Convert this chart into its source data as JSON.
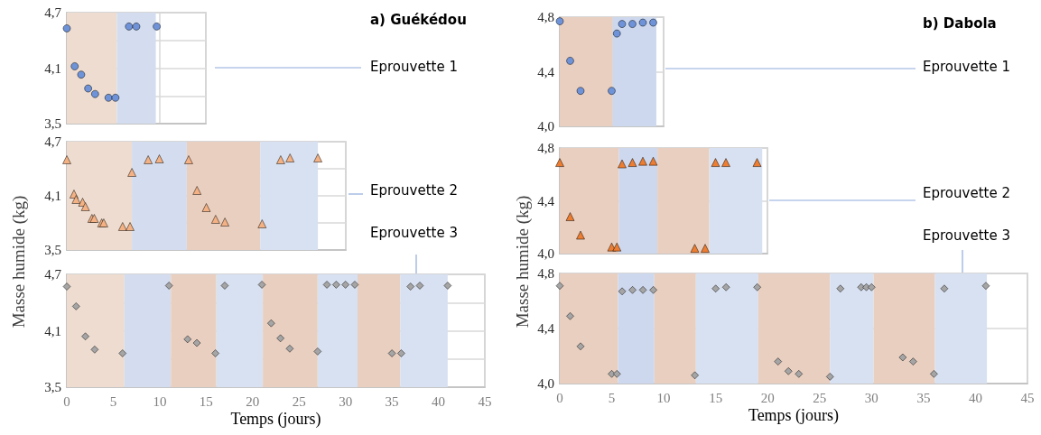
{
  "chart_data": [
    {
      "type": "scatter",
      "annotations": [
        "a) Guékédou",
        "Eprouvette 1"
      ],
      "marker": "circle",
      "grid": true,
      "tick_labels": "y",
      "xlim": [
        0,
        15
      ],
      "xticks": [
        0,
        5,
        10,
        15
      ],
      "ylim": [
        3.5,
        4.7
      ],
      "yticks": [
        {
          "value": 3.5,
          "label": "3,5"
        },
        {
          "value": 3.8,
          "label": null
        },
        {
          "value": 4.1,
          "label": "4,1"
        },
        {
          "value": 4.4,
          "label": null
        },
        {
          "value": 4.7,
          "label": "4,7"
        }
      ],
      "bands": [
        {
          "axis": "x",
          "from": 0,
          "to": 5.4,
          "color": "#eddccf"
        },
        {
          "axis": "x",
          "from": 5.4,
          "to": 9.6,
          "color": "#d3ddef"
        }
      ],
      "series": [
        {
          "color": "#6f93d8",
          "x": [
            0,
            0.85,
            1.55,
            2.3,
            3.05,
            4.5,
            5.25,
            6.7,
            7.5,
            9.7
          ],
          "values": [
            4.53,
            4.12,
            4.03,
            3.88,
            3.82,
            3.78,
            3.78,
            4.55,
            4.55,
            4.55
          ]
        }
      ]
    },
    {
      "type": "scatter",
      "annotations": [
        "Eprouvette 2"
      ],
      "ylabel": "Masse humide (kg)",
      "marker": "triangle",
      "grid": true,
      "tick_labels": "y",
      "xlim": [
        0,
        30
      ],
      "xticks": [
        0,
        5,
        10,
        15,
        20,
        25,
        30
      ],
      "ylim": [
        3.5,
        4.7
      ],
      "yticks": [
        {
          "value": 3.5,
          "label": "3,5"
        },
        {
          "value": 3.8,
          "label": null
        },
        {
          "value": 4.1,
          "label": "4,1"
        },
        {
          "value": 4.4,
          "label": null
        },
        {
          "value": 4.7,
          "label": "4,7"
        }
      ],
      "bands": [
        {
          "axis": "x",
          "from": 0,
          "to": 7,
          "color": "#eddccf"
        },
        {
          "axis": "x",
          "from": 7,
          "to": 12.9,
          "color": "#d3ddef"
        },
        {
          "axis": "x",
          "from": 12.9,
          "to": 20.8,
          "color": "#e9cfc0"
        },
        {
          "axis": "x",
          "from": 20.8,
          "to": 27,
          "color": "#d8e1f1"
        }
      ],
      "series": [
        {
          "color": "#f4b183",
          "x": [
            0,
            0.77,
            1,
            1.7,
            2,
            2.7,
            2.95,
            3.75,
            3.97,
            6,
            6.8,
            7,
            8.75,
            9.95,
            13.1,
            14,
            15,
            16,
            17,
            21,
            23,
            24,
            27
          ],
          "values": [
            4.5,
            4.12,
            4.06,
            4.03,
            3.98,
            3.85,
            3.85,
            3.8,
            3.8,
            3.76,
            3.76,
            4.36,
            4.5,
            4.51,
            4.5,
            4.16,
            3.97,
            3.84,
            3.81,
            3.79,
            4.5,
            4.52,
            4.52
          ]
        }
      ]
    },
    {
      "type": "scatter",
      "annotations": [
        "Eprouvette 3"
      ],
      "xlabel": "Temps (jours)",
      "marker": "diamond",
      "grid": true,
      "xlim": [
        0,
        45
      ],
      "xticks": [
        0,
        5,
        10,
        15,
        20,
        25,
        30,
        35,
        40,
        45
      ],
      "ylim": [
        3.5,
        4.7
      ],
      "yticks": [
        {
          "value": 3.5,
          "label": "3,5"
        },
        {
          "value": 3.8,
          "label": null
        },
        {
          "value": 4.1,
          "label": "4,1"
        },
        {
          "value": 4.4,
          "label": null
        },
        {
          "value": 4.7,
          "label": "4,7"
        }
      ],
      "bands": [
        {
          "axis": "x",
          "from": 0,
          "to": 6.2,
          "color": "#eddccf"
        },
        {
          "axis": "x",
          "from": 6.2,
          "to": 11.2,
          "color": "#d3ddef"
        },
        {
          "axis": "x",
          "from": 11.2,
          "to": 16.1,
          "color": "#e9cfc0"
        },
        {
          "axis": "x",
          "from": 16.1,
          "to": 21.1,
          "color": "#d8e1f1"
        },
        {
          "axis": "x",
          "from": 21.1,
          "to": 27,
          "color": "#e9cfc0"
        },
        {
          "axis": "x",
          "from": 27,
          "to": 31.3,
          "color": "#d8e1f1"
        },
        {
          "axis": "x",
          "from": 31.3,
          "to": 35.9,
          "color": "#e9cfc0"
        },
        {
          "axis": "x",
          "from": 35.9,
          "to": 41,
          "color": "#d8e1f1"
        }
      ],
      "series": [
        {
          "color": "#a5a5a5",
          "x": [
            0,
            1,
            2,
            3,
            6,
            11,
            13,
            14,
            16,
            17,
            21,
            22,
            23,
            24,
            27,
            28,
            29,
            30,
            31,
            35,
            36,
            37,
            38,
            41
          ],
          "values": [
            4.57,
            4.36,
            4.04,
            3.9,
            3.86,
            4.58,
            4.01,
            3.97,
            3.86,
            4.58,
            4.59,
            4.18,
            4.02,
            3.91,
            3.88,
            4.59,
            4.59,
            4.59,
            4.59,
            3.86,
            3.86,
            4.57,
            4.58,
            4.58
          ]
        }
      ]
    },
    {
      "type": "scatter",
      "annotations": [
        "b) Dabola",
        "Eprouvette 1"
      ],
      "marker": "circle",
      "grid": true,
      "tick_labels": "y",
      "xlim": [
        0,
        10
      ],
      "xticks": [
        0,
        5,
        10
      ],
      "ylim": [
        4.0,
        4.8
      ],
      "yticks": [
        {
          "value": 4.0,
          "label": "4,0"
        },
        {
          "value": 4.4,
          "label": "4,4"
        },
        {
          "value": 4.8,
          "label": "4,8"
        }
      ],
      "bands": [
        {
          "axis": "x",
          "from": 0,
          "to": 5.1,
          "color": "#e9cfc0"
        },
        {
          "axis": "x",
          "from": 5.1,
          "to": 9.3,
          "color": "#cdd8ee"
        }
      ],
      "series": [
        {
          "color": "#6f93d8",
          "x": [
            0,
            1,
            2,
            5,
            5.5,
            6,
            7,
            8,
            9
          ],
          "values": [
            4.77,
            4.48,
            4.26,
            4.26,
            4.68,
            4.75,
            4.75,
            4.76,
            4.76
          ]
        }
      ]
    },
    {
      "type": "scatter",
      "annotations": [
        "Eprouvette 2"
      ],
      "ylabel": "Masse humide (kg)",
      "marker": "triangle",
      "grid": true,
      "tick_labels": "y",
      "xlim": [
        0,
        20
      ],
      "xticks": [
        0,
        5,
        10,
        15,
        20
      ],
      "ylim": [
        4.0,
        4.8
      ],
      "yticks": [
        {
          "value": 4.0,
          "label": "4,0"
        },
        {
          "value": 4.4,
          "label": "4,4"
        },
        {
          "value": 4.8,
          "label": "4,8"
        }
      ],
      "bands": [
        {
          "axis": "x",
          "from": 0,
          "to": 5.7,
          "color": "#e9cfc0"
        },
        {
          "axis": "x",
          "from": 5.7,
          "to": 9.4,
          "color": "#cdd8ee"
        },
        {
          "axis": "x",
          "from": 9.4,
          "to": 14.4,
          "color": "#e9cfc0"
        },
        {
          "axis": "x",
          "from": 14.4,
          "to": 19.5,
          "color": "#d8e1f1"
        }
      ],
      "series": [
        {
          "color": "#ed7d31",
          "x": [
            0,
            1,
            2,
            5,
            5.5,
            6,
            7,
            8,
            9,
            13,
            14,
            15,
            16,
            19
          ],
          "values": [
            4.69,
            4.28,
            4.14,
            4.05,
            4.05,
            4.68,
            4.69,
            4.7,
            4.7,
            4.04,
            4.04,
            4.69,
            4.69,
            4.69
          ]
        }
      ]
    },
    {
      "type": "scatter",
      "annotations": [
        "Eprouvette 3"
      ],
      "xlabel": "Temps (jours)",
      "marker": "diamond",
      "grid": true,
      "xlim": [
        0,
        45
      ],
      "xticks": [
        0,
        5,
        10,
        15,
        20,
        25,
        30,
        35,
        40,
        45
      ],
      "ylim": [
        4.0,
        4.8
      ],
      "yticks": [
        {
          "value": 4.0,
          "label": "4,0"
        },
        {
          "value": 4.4,
          "label": "4,4"
        },
        {
          "value": 4.8,
          "label": "4,8"
        }
      ],
      "bands": [
        {
          "axis": "x",
          "from": 0,
          "to": 5.6,
          "color": "#e9cfc0"
        },
        {
          "axis": "x",
          "from": 5.6,
          "to": 9.1,
          "color": "#cdd8ee"
        },
        {
          "axis": "x",
          "from": 9.1,
          "to": 13.1,
          "color": "#e9cfc0"
        },
        {
          "axis": "x",
          "from": 13.1,
          "to": 19.1,
          "color": "#d8e1f1"
        },
        {
          "axis": "x",
          "from": 19.1,
          "to": 26,
          "color": "#e9cfc0"
        },
        {
          "axis": "x",
          "from": 26,
          "to": 30.2,
          "color": "#d8e1f1"
        },
        {
          "axis": "x",
          "from": 30.2,
          "to": 36.1,
          "color": "#e9cfc0"
        },
        {
          "axis": "x",
          "from": 36.1,
          "to": 41.1,
          "color": "#d8e1f1"
        }
      ],
      "series": [
        {
          "color": "#a5a5a5",
          "x": [
            0,
            1,
            2,
            5,
            5.5,
            6,
            7,
            8,
            9,
            13,
            15,
            16,
            19,
            21,
            22,
            23,
            26,
            27,
            29,
            29.5,
            30,
            33,
            34,
            36,
            37,
            41
          ],
          "values": [
            4.71,
            4.49,
            4.27,
            4.07,
            4.07,
            4.67,
            4.68,
            4.68,
            4.68,
            4.06,
            4.69,
            4.7,
            4.7,
            4.16,
            4.09,
            4.07,
            4.05,
            4.69,
            4.7,
            4.7,
            4.7,
            4.19,
            4.16,
            4.07,
            4.69,
            4.71
          ]
        }
      ]
    }
  ]
}
